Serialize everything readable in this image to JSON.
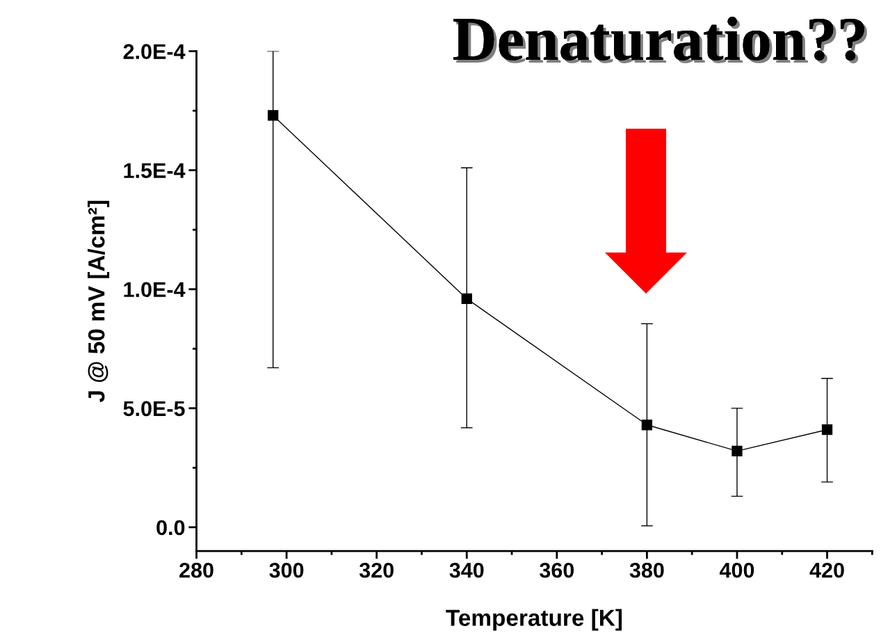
{
  "chart_data": {
    "type": "line",
    "xlabel": "Temperature [K]",
    "ylabel": "J @ 50 mV [A/cm²]",
    "annotations": [
      "Denaturation??"
    ],
    "x": [
      297,
      340,
      380,
      400,
      420
    ],
    "series": [
      {
        "color": "#000000",
        "values": [
          0.000173,
          9.6e-05,
          4.3e-05,
          3.2e-05,
          4.1e-05
        ],
        "errors": [
          [
            6.7e-05,
            0.0002
          ],
          [
            4.18e-05,
            0.000151
          ],
          [
            6e-07,
            8.55e-05
          ],
          [
            1.3e-05,
            5e-05
          ],
          [
            1.9e-05,
            6.25e-05
          ]
        ]
      }
    ],
    "marker": "square",
    "line_style": "solid",
    "grid": false,
    "legend": false,
    "xlim": [
      280,
      430
    ],
    "xticks": [
      280,
      300,
      320,
      340,
      360,
      380,
      400,
      420
    ],
    "ylim": [
      -1e-05,
      0.0002
    ],
    "yticks": [
      {
        "value": 0,
        "label": "0.0"
      },
      {
        "value": 5e-05,
        "label": "5.0E-5"
      },
      {
        "value": 0.0001,
        "label": "1.0E-4"
      },
      {
        "value": 0.00015,
        "label": "1.5E-4"
      },
      {
        "value": 0.0002,
        "label": "2.0E-4"
      }
    ]
  }
}
